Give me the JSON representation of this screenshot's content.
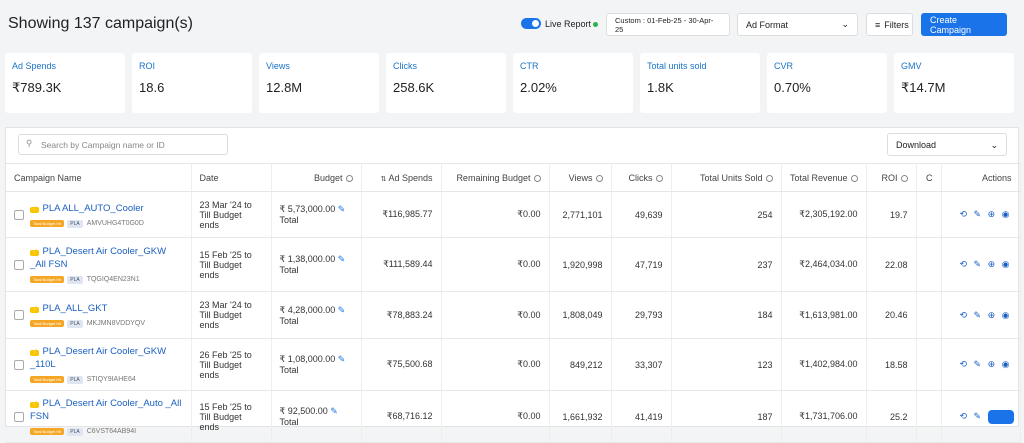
{
  "header": {
    "title": "Showing 137 campaign(s)",
    "live_report": "Live Report",
    "date_range": "Custom : 01-Feb-25 - 30-Apr-25",
    "ad_format": "Ad Format",
    "filters": "Filters",
    "create": "Create Campaign"
  },
  "metrics": [
    {
      "label": "Ad Spends",
      "value": "₹789.3K"
    },
    {
      "label": "ROI",
      "value": "18.6"
    },
    {
      "label": "Views",
      "value": "12.8M"
    },
    {
      "label": "Clicks",
      "value": "258.6K"
    },
    {
      "label": "CTR",
      "value": "2.02%"
    },
    {
      "label": "Total units sold",
      "value": "1.8K"
    },
    {
      "label": "CVR",
      "value": "0.70%"
    },
    {
      "label": "GMV",
      "value": "₹14.7M"
    }
  ],
  "search_placeholder": "Search by Campaign name or ID",
  "download": "Download",
  "table": {
    "columns": [
      "Campaign Name",
      "Date",
      "Budget",
      "Ad Spends",
      "Remaining Budget",
      "Views",
      "Clicks",
      "Total Units Sold",
      "Total Revenue",
      "ROI",
      "C",
      "Actions"
    ],
    "rows": [
      {
        "name": "PLA ALL_AUTO_Cooler",
        "badge": "Total Budget Hit",
        "tag": "PLA",
        "id": "AMVUHG4T0G0D",
        "date_from": "23 Mar '24 to",
        "date_to": "Till Budget ends",
        "budget": "₹ 5,73,000.00",
        "budget_type": "Total",
        "ad_spends": "₹116,985.77",
        "remaining": "₹0.00",
        "views": "2,771,101",
        "clicks": "49,639",
        "units": "254",
        "revenue": "₹2,305,192.00",
        "roi": "19.7"
      },
      {
        "name": "PLA_Desert Air Cooler_GKW _All FSN",
        "badge": "Total Budget Hit",
        "tag": "PLA",
        "id": "TQGIQ4EN23N1",
        "date_from": "15 Feb '25 to",
        "date_to": "Till Budget ends",
        "budget": "₹ 1,38,000.00",
        "budget_type": "Total",
        "ad_spends": "₹111,589.44",
        "remaining": "₹0.00",
        "views": "1,920,998",
        "clicks": "47,719",
        "units": "237",
        "revenue": "₹2,464,034.00",
        "roi": "22.08"
      },
      {
        "name": "PLA_ALL_GKT",
        "badge": "Total Budget Hit",
        "tag": "PLA",
        "id": "MKJMN8VDDYQV",
        "date_from": "23 Mar '24 to",
        "date_to": "Till Budget ends",
        "budget": "₹ 4,28,000.00",
        "budget_type": "Total",
        "ad_spends": "₹78,883.24",
        "remaining": "₹0.00",
        "views": "1,808,049",
        "clicks": "29,793",
        "units": "184",
        "revenue": "₹1,613,981.00",
        "roi": "20.46"
      },
      {
        "name": "PLA_Desert Air Cooler_GKW _110L",
        "badge": "Total Budget Hit",
        "tag": "PLA",
        "id": "STIQY9IAHE64",
        "date_from": "26 Feb '25 to",
        "date_to": "Till Budget ends",
        "budget": "₹ 1,08,000.00",
        "budget_type": "Total",
        "ad_spends": "₹75,500.68",
        "remaining": "₹0.00",
        "views": "849,212",
        "clicks": "33,307",
        "units": "123",
        "revenue": "₹1,402,984.00",
        "roi": "18.58"
      },
      {
        "name": "PLA_Desert Air Cooler_Auto _All FSN",
        "badge": "Total Budget Hit",
        "tag": "PLA",
        "id": "C6VST64AB94I",
        "date_from": "15 Feb '25 to",
        "date_to": "Till Budget ends",
        "budget": "₹ 92,500.00",
        "budget_type": "Total",
        "ad_spends": "₹68,716.12",
        "remaining": "₹0.00",
        "views": "1,661,932",
        "clicks": "41,419",
        "units": "187",
        "revenue": "₹1,731,706.00",
        "roi": "25.2"
      }
    ]
  }
}
